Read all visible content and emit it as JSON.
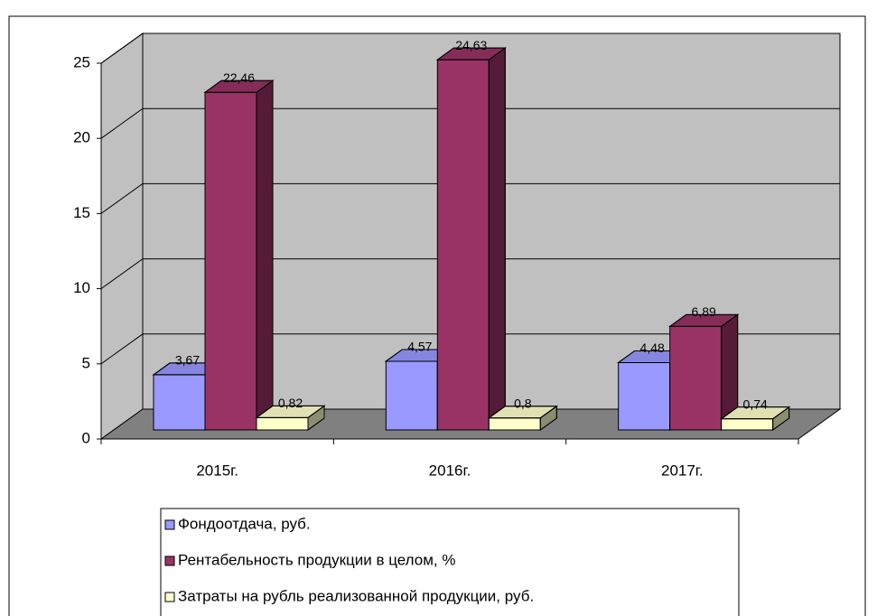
{
  "chart_data": {
    "type": "bar3d",
    "categories": [
      "2015г.",
      "2016г.",
      "2017г."
    ],
    "series": [
      {
        "name": "Фондоотдача, руб.",
        "color": "#9999ff",
        "values": [
          3.67,
          4.57,
          4.48
        ],
        "value_labels": [
          "3,67",
          "4,57",
          "4,48"
        ]
      },
      {
        "name": "Рентабельность продукции в целом, %",
        "color": "#993366",
        "values": [
          22.46,
          24.63,
          6.89
        ],
        "value_labels": [
          "22,46",
          "24,63",
          "6,89"
        ]
      },
      {
        "name": "Затраты на рубль реализованной продукции, руб.",
        "color": "#ffffcc",
        "values": [
          0.82,
          0.8,
          0.74
        ],
        "value_labels": [
          "0,82",
          "0,8",
          "0,74"
        ]
      }
    ],
    "ylim": [
      0,
      25
    ],
    "yticks": [
      0,
      5,
      10,
      15,
      20,
      25
    ],
    "grid": true,
    "legend": "bottom"
  }
}
